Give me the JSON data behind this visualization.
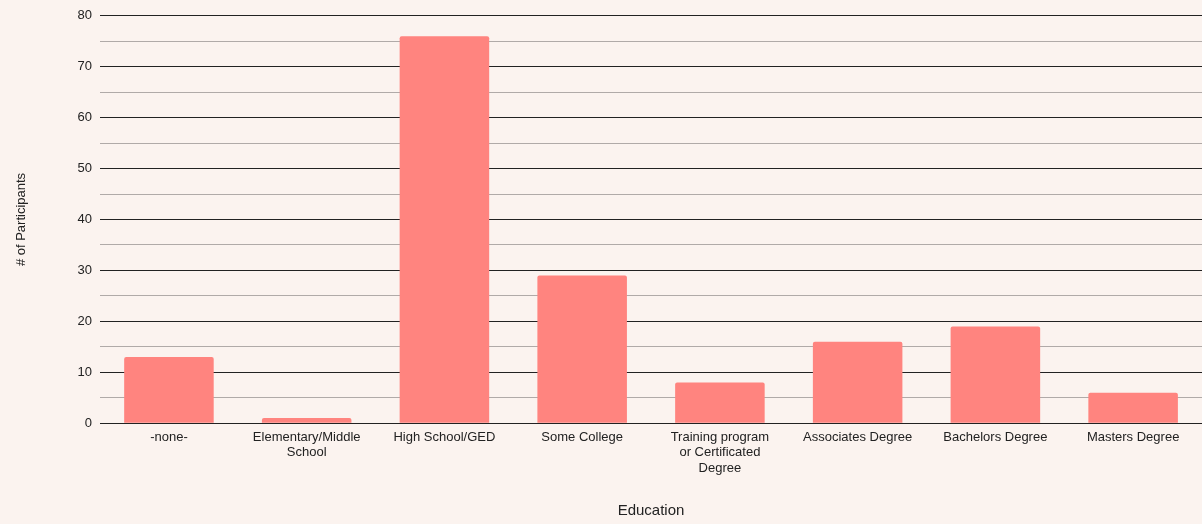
{
  "chart_data": {
    "type": "bar",
    "xlabel": "Education",
    "ylabel": "# of Participants",
    "categories": [
      "-none-",
      "Elementary/Middle School",
      "High School/GED",
      "Some College",
      "Training program or Certificated Degree",
      "Associates Degree",
      "Bachelors Degree",
      "Masters Degree"
    ],
    "values": [
      13,
      1,
      76,
      29,
      8,
      16,
      19,
      6
    ],
    "color": "#ff847f",
    "ylim": [
      0,
      80
    ],
    "yticks": [
      0,
      {
        "value": 5,
        "label": null
      },
      10,
      {
        "value": 15,
        "label": null
      },
      20,
      {
        "value": 25,
        "label": null
      },
      30,
      {
        "value": 35,
        "label": null
      },
      40,
      {
        "value": 45,
        "label": null
      },
      50,
      {
        "value": 55,
        "label": null
      },
      60,
      {
        "value": 65,
        "label": null
      },
      70,
      {
        "value": 75,
        "label": null
      },
      80
    ],
    "grid": "y",
    "legend": false
  }
}
